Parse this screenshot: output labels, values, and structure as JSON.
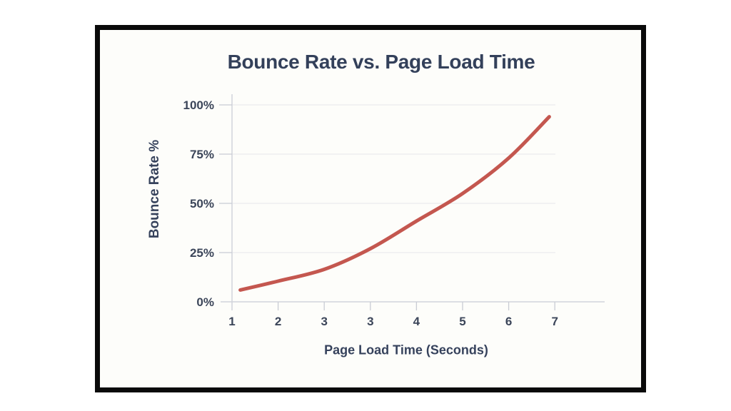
{
  "style": {
    "frame_border_color": "#0a0a0a",
    "frame_background": "#fdfdfa",
    "page_background": "#ffffff",
    "title_color": "#33405a",
    "tick_label_color": "#3b4559",
    "grid_color": "#ececee",
    "axis_color": "#d1d4db",
    "tick_mark_color": "#c9ccd4",
    "line_color": "#c4574f"
  },
  "chart_data": {
    "type": "line",
    "title": "Bounce Rate vs. Page Load Time",
    "xlabel": "Page Load Time (Seconds)",
    "ylabel": "Bounce Rate %",
    "x_tick_labels": [
      "1",
      "2",
      "3",
      "3",
      "4",
      "5",
      "6",
      "7"
    ],
    "y_tick_labels": [
      "0%",
      "25%",
      "50%",
      "75%",
      "100%"
    ],
    "y_tick_values": [
      0,
      25,
      50,
      75,
      100
    ],
    "ylim": [
      0,
      100
    ],
    "grid": "horizontal",
    "legend_position": "none",
    "note": "x tick labels as rendered contain a duplicated '3'; series points use tick position index 1-8 along the evenly spaced ticks",
    "series": [
      {
        "name": "Bounce Rate",
        "color": "#c4574f",
        "points": [
          {
            "tick_pos": 1.18,
            "pct": 6
          },
          {
            "tick_pos": 2,
            "pct": 10.5
          },
          {
            "tick_pos": 3,
            "pct": 16.5
          },
          {
            "tick_pos": 4,
            "pct": 27
          },
          {
            "tick_pos": 5,
            "pct": 41
          },
          {
            "tick_pos": 6,
            "pct": 55
          },
          {
            "tick_pos": 7,
            "pct": 73
          },
          {
            "tick_pos": 7.88,
            "pct": 94
          }
        ]
      }
    ]
  }
}
